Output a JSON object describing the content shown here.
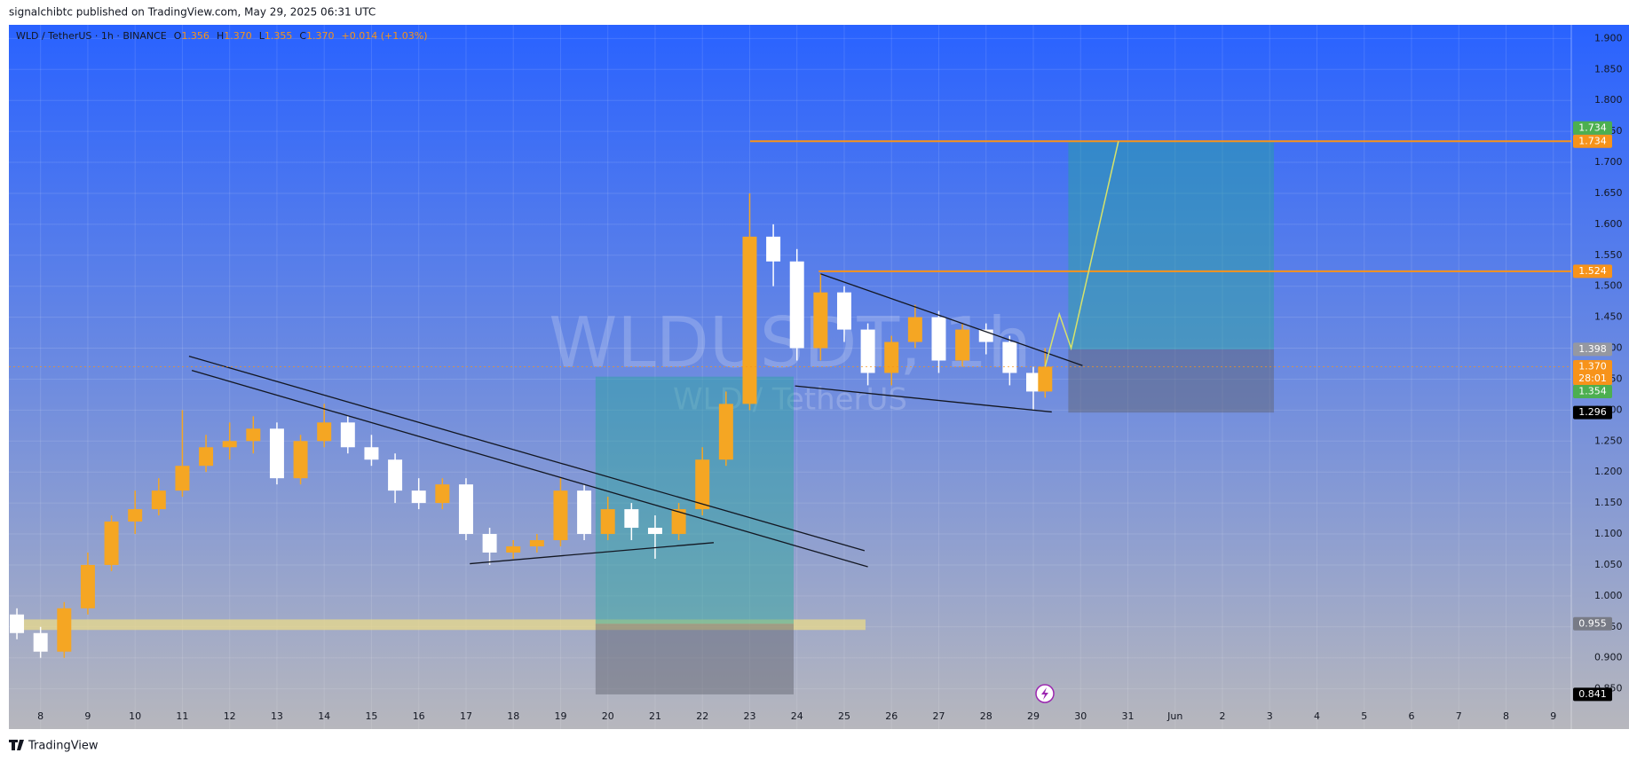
{
  "header": {
    "published": "signalchibtc published on TradingView.com, May 29, 2025 06:31 UTC",
    "footer": "TradingView"
  },
  "chart_data": {
    "type": "candlestick",
    "legend": {
      "symbol": "WLD / TetherUS · 1h · BINANCE",
      "o_label": "O",
      "open": {
        "value": 1.356,
        "label": "1.356"
      },
      "h_label": "H",
      "high": {
        "value": 1.37,
        "label": "1.370"
      },
      "l_label": "L",
      "low": {
        "value": 1.355,
        "label": "1.355"
      },
      "c_label": "C",
      "close": {
        "value": 1.37,
        "label": "1.370"
      },
      "change": "+0.014 (+1.03%)"
    },
    "watermark": [
      "WLDUSDT, 1h",
      "WLD / TetherUS"
    ],
    "x": [
      7.5,
      8,
      8.5,
      9,
      9.5,
      10,
      10.5,
      11,
      11.5,
      12,
      12.5,
      13,
      13.5,
      14,
      14.5,
      15,
      15.5,
      16,
      16.5,
      17,
      17.5,
      18,
      18.5,
      19,
      19.5,
      20,
      20.5,
      21,
      21.5,
      22,
      22.5,
      23,
      23.5,
      24,
      24.5,
      25,
      25.5,
      26,
      26.5,
      27,
      27.5,
      28,
      28.5,
      29,
      29.25
    ],
    "open": [
      0.97,
      0.94,
      0.91,
      0.98,
      1.05,
      1.12,
      1.14,
      1.17,
      1.21,
      1.24,
      1.25,
      1.27,
      1.19,
      1.25,
      1.28,
      1.24,
      1.22,
      1.17,
      1.15,
      1.18,
      1.1,
      1.07,
      1.08,
      1.09,
      1.17,
      1.1,
      1.14,
      1.11,
      1.1,
      1.14,
      1.22,
      1.31,
      1.58,
      1.54,
      1.4,
      1.49,
      1.43,
      1.36,
      1.41,
      1.45,
      1.38,
      1.43,
      1.41,
      1.36,
      1.33
    ],
    "high": [
      0.98,
      0.95,
      0.99,
      1.07,
      1.13,
      1.17,
      1.19,
      1.3,
      1.26,
      1.28,
      1.29,
      1.28,
      1.26,
      1.31,
      1.29,
      1.26,
      1.23,
      1.19,
      1.19,
      1.19,
      1.11,
      1.09,
      1.1,
      1.19,
      1.18,
      1.16,
      1.15,
      1.13,
      1.15,
      1.24,
      1.33,
      1.65,
      1.6,
      1.56,
      1.52,
      1.5,
      1.44,
      1.42,
      1.47,
      1.46,
      1.44,
      1.44,
      1.42,
      1.37,
      1.4
    ],
    "low": [
      0.93,
      0.9,
      0.9,
      0.97,
      1.04,
      1.1,
      1.13,
      1.16,
      1.2,
      1.22,
      1.23,
      1.18,
      1.18,
      1.24,
      1.23,
      1.21,
      1.15,
      1.14,
      1.14,
      1.09,
      1.05,
      1.06,
      1.07,
      1.08,
      1.09,
      1.09,
      1.09,
      1.06,
      1.09,
      1.13,
      1.21,
      1.3,
      1.5,
      1.38,
      1.38,
      1.41,
      1.34,
      1.34,
      1.4,
      1.36,
      1.37,
      1.39,
      1.34,
      1.3,
      1.32
    ],
    "close": [
      0.94,
      0.91,
      0.98,
      1.05,
      1.12,
      1.14,
      1.17,
      1.21,
      1.24,
      1.25,
      1.27,
      1.19,
      1.25,
      1.28,
      1.24,
      1.22,
      1.17,
      1.15,
      1.18,
      1.1,
      1.07,
      1.08,
      1.09,
      1.17,
      1.1,
      1.14,
      1.11,
      1.1,
      1.14,
      1.22,
      1.31,
      1.58,
      1.54,
      1.4,
      1.49,
      1.43,
      1.36,
      1.41,
      1.45,
      1.38,
      1.43,
      1.41,
      1.36,
      1.33,
      1.37
    ],
    "up_color": "#f5a623",
    "down_color": "#ffffff",
    "xlim": [
      7.33,
      40.38
    ],
    "xticks": [
      8,
      9,
      10,
      11,
      12,
      13,
      14,
      15,
      16,
      17,
      18,
      19,
      20,
      21,
      22,
      23,
      24,
      25,
      26,
      27,
      28,
      29,
      30,
      31,
      {
        "value": 32,
        "label": "Jun"
      },
      {
        "value": 33,
        "label": "2"
      },
      {
        "value": 34,
        "label": "3"
      },
      {
        "value": 35,
        "label": "4"
      },
      {
        "value": 36,
        "label": "5"
      },
      {
        "value": 37,
        "label": "6"
      },
      {
        "value": 38,
        "label": "7"
      },
      {
        "value": 39,
        "label": "8"
      },
      {
        "value": 40,
        "label": "9"
      }
    ],
    "ylim": [
      0.785,
      1.922
    ],
    "yticks": [
      {
        "value": 0.85,
        "label": "0.850"
      },
      {
        "value": 0.9,
        "label": "0.900"
      },
      {
        "value": 0.95,
        "label": "0.950"
      },
      {
        "value": 1.0,
        "label": "1.000"
      },
      {
        "value": 1.05,
        "label": "1.050"
      },
      {
        "value": 1.1,
        "label": "1.100"
      },
      {
        "value": 1.15,
        "label": "1.150"
      },
      {
        "value": 1.2,
        "label": "1.200"
      },
      {
        "value": 1.25,
        "label": "1.250"
      },
      {
        "value": 1.3,
        "label": "1.300"
      },
      {
        "value": 1.35,
        "label": "1.350"
      },
      {
        "value": 1.4,
        "label": "1.400"
      },
      {
        "value": 1.45,
        "label": "1.450"
      },
      {
        "value": 1.5,
        "label": "1.500"
      },
      {
        "value": 1.55,
        "label": "1.550"
      },
      {
        "value": 1.6,
        "label": "1.600"
      },
      {
        "value": 1.65,
        "label": "1.650"
      },
      {
        "value": 1.7,
        "label": "1.700"
      },
      {
        "value": 1.75,
        "label": "1.750"
      },
      {
        "value": 1.8,
        "label": "1.800"
      },
      {
        "value": 1.85,
        "label": "1.850"
      },
      {
        "value": 1.9,
        "label": "1.900"
      }
    ],
    "grid": true,
    "trendlines": [
      {
        "x": [
          11.14,
          25.43
        ],
        "y": [
          1.387,
          1.073
        ]
      },
      {
        "x": [
          11.2,
          25.5
        ],
        "y": [
          1.364,
          1.047
        ]
      },
      {
        "x": [
          17.08,
          22.24
        ],
        "y": [
          1.052,
          1.086
        ]
      },
      {
        "x": [
          24.5,
          30.04
        ],
        "y": [
          1.52,
          1.372
        ]
      },
      {
        "x": [
          23.96,
          29.39
        ],
        "y": [
          1.339,
          1.297
        ]
      }
    ],
    "positions": [
      {
        "x": [
          19.74,
          23.93
        ],
        "target": 1.354,
        "entry": 0.955,
        "stop": 0.841
      },
      {
        "x": [
          29.74,
          34.09
        ],
        "target": 1.734,
        "entry": 1.398,
        "stop": 1.296
      }
    ],
    "hlines": [
      {
        "value": 1.734,
        "from": 23.01,
        "color": "#f7931a"
      },
      {
        "value": 1.524,
        "from": 24.46,
        "color": "#f7931a"
      }
    ],
    "band": {
      "range": [
        0.945,
        0.962
      ],
      "x": [
        7.36,
        25.45
      ],
      "color": "#e9d98a"
    },
    "projection": {
      "x": [
        29.25,
        29.55,
        29.8,
        30.8
      ],
      "y": [
        1.37,
        1.455,
        1.4,
        1.734
      ],
      "color": "#d7e36a"
    },
    "price_labels": [
      {
        "value": 1.734,
        "color": "#f7931a"
      },
      {
        "value": 1.734,
        "color": "#4caf50"
      },
      {
        "value": 1.524,
        "color": "#f7931a"
      },
      {
        "value": 1.398,
        "color": "#9598a1"
      },
      {
        "value": 1.37,
        "label": "1.370",
        "color": "#f7931a",
        "sub": "28:01"
      },
      {
        "value": 1.354,
        "color": "#4caf50"
      },
      {
        "value": 1.296,
        "color": "#000000"
      },
      {
        "value": 0.955,
        "color": "#787b86"
      },
      {
        "value": 0.841,
        "color": "#000000"
      }
    ]
  }
}
